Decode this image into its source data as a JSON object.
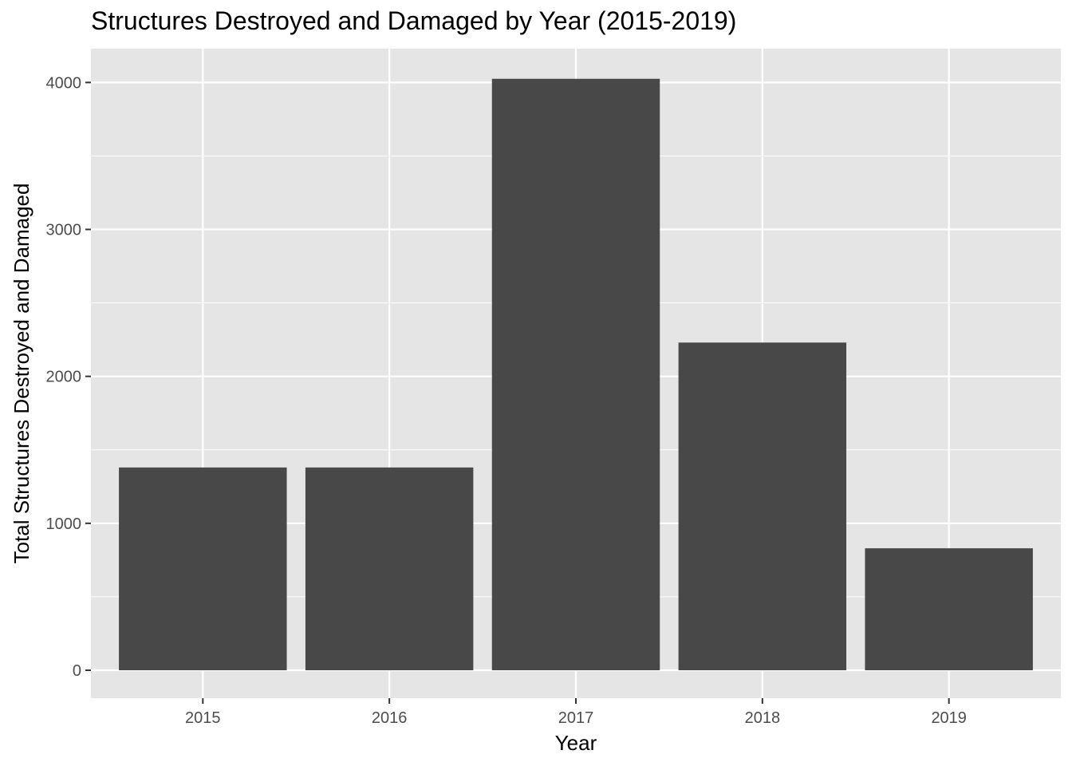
{
  "chart_data": {
    "type": "bar",
    "title": "Structures Destroyed and Damaged by Year (2015-2019)",
    "xlabel": "Year",
    "ylabel": "Total Structures Destroyed and Damaged",
    "categories": [
      "2015",
      "2016",
      "2017",
      "2018",
      "2019"
    ],
    "values": [
      1380,
      1380,
      4025,
      2230,
      830
    ],
    "ylim": [
      -190,
      4230
    ],
    "yticks": [
      0,
      1000,
      2000,
      3000,
      4000
    ],
    "grid": true,
    "legend": "none",
    "colors": {
      "bar": "#484848",
      "panel": "#e5e5e5",
      "grid": "#ffffff",
      "tick": "#333333",
      "tick_text": "#4d4d4d"
    }
  }
}
